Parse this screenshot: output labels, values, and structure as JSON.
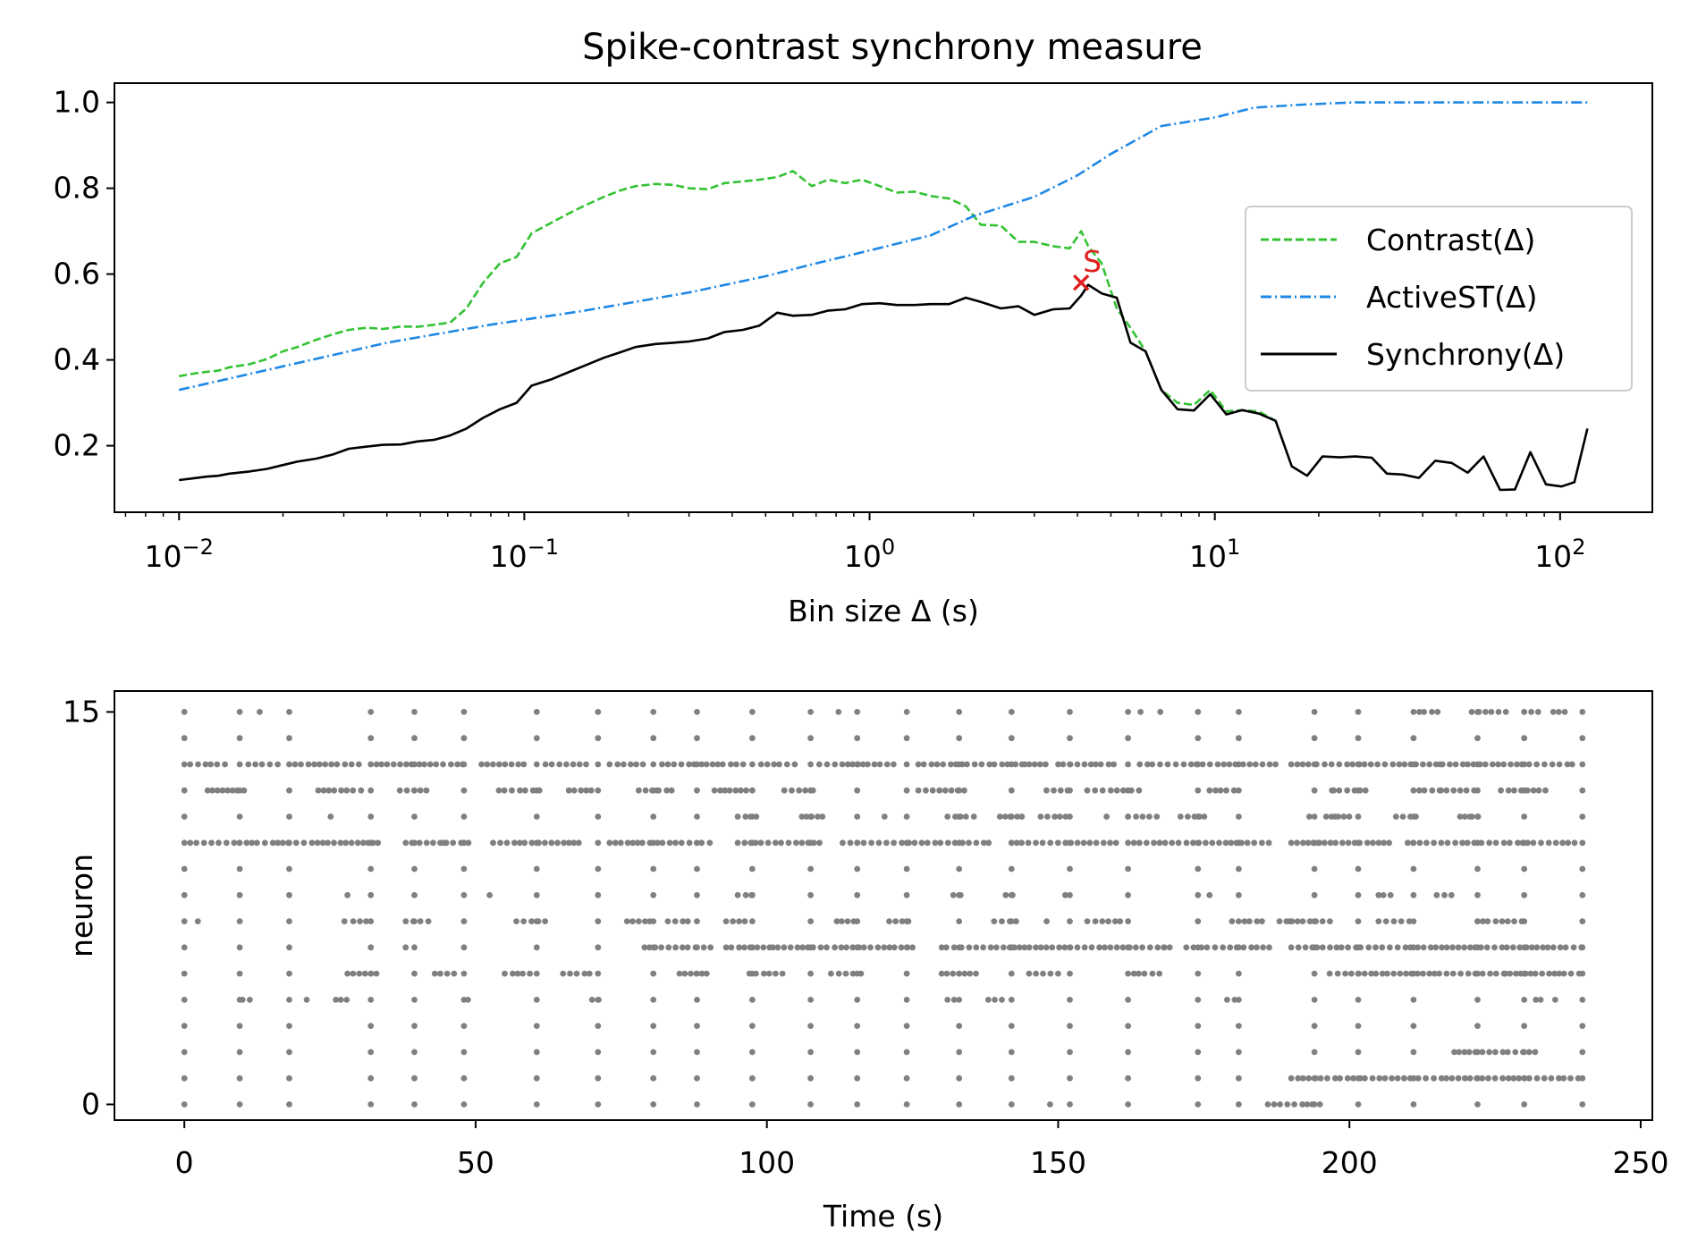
{
  "figure": {
    "title": "Spike-contrast synchrony measure"
  },
  "chart_data": [
    {
      "type": "line",
      "title": "Spike-contrast synchrony measure",
      "xlabel": "Bin size Δ (s)",
      "ylabel": "",
      "xscale": "log",
      "xlim": [
        0.0065,
        185
      ],
      "ylim": [
        0.045,
        1.045
      ],
      "xticks": [
        0.01,
        0.1,
        1,
        10,
        100
      ],
      "xtick_labels": [
        {
          "base": "10",
          "exp": "−2"
        },
        {
          "base": "10",
          "exp": "−1"
        },
        {
          "base": "10",
          "exp": "0"
        },
        {
          "base": "10",
          "exp": "1"
        },
        {
          "base": "10",
          "exp": "2"
        }
      ],
      "yticks": [
        0.2,
        0.4,
        0.6,
        0.8,
        1.0
      ],
      "ytick_labels": [
        "0.2",
        "0.4",
        "0.6",
        "0.8",
        "1.0"
      ],
      "grid": false,
      "legend": "center-right",
      "series": [
        {
          "name": "Contrast(Δ)",
          "color": "#33c233",
          "style": "dashed",
          "x": [
            0.01,
            0.011,
            0.012,
            0.013,
            0.014,
            0.016,
            0.018,
            0.02,
            0.022,
            0.025,
            0.028,
            0.031,
            0.035,
            0.039,
            0.044,
            0.049,
            0.055,
            0.061,
            0.068,
            0.076,
            0.085,
            0.095,
            0.105,
            0.12,
            0.135,
            0.15,
            0.17,
            0.19,
            0.21,
            0.24,
            0.27,
            0.3,
            0.34,
            0.38,
            0.43,
            0.48,
            0.54,
            0.6,
            0.68,
            0.76,
            0.85,
            0.95,
            1.07,
            1.2,
            1.35,
            1.5,
            1.7,
            1.9,
            2.1,
            2.4,
            2.7,
            3.0,
            3.4,
            3.8,
            4.1,
            4.3,
            4.7,
            5.2,
            5.7,
            6.3,
            7.0,
            7.8,
            8.7,
            9.7,
            10.8,
            12.0,
            13.4,
            15.0
          ],
          "values": [
            0.362,
            0.368,
            0.372,
            0.375,
            0.383,
            0.39,
            0.402,
            0.42,
            0.43,
            0.447,
            0.46,
            0.47,
            0.475,
            0.472,
            0.478,
            0.477,
            0.482,
            0.487,
            0.52,
            0.58,
            0.625,
            0.64,
            0.695,
            0.72,
            0.742,
            0.76,
            0.78,
            0.795,
            0.805,
            0.81,
            0.808,
            0.8,
            0.798,
            0.812,
            0.816,
            0.82,
            0.826,
            0.84,
            0.805,
            0.82,
            0.812,
            0.82,
            0.805,
            0.79,
            0.792,
            0.782,
            0.776,
            0.758,
            0.715,
            0.713,
            0.675,
            0.675,
            0.665,
            0.66,
            0.7,
            0.665,
            0.625,
            0.52,
            0.475,
            0.42,
            0.33,
            0.3,
            0.295,
            0.33,
            0.28,
            0.283,
            0.28,
            0.258
          ]
        },
        {
          "name": "ActiveST(Δ)",
          "color": "#1e88e5",
          "style": "dashdot",
          "x": [
            0.01,
            0.02,
            0.04,
            0.08,
            0.15,
            0.3,
            0.5,
            0.7,
            1.0,
            1.5,
            2.0,
            3.0,
            4.0,
            5.0,
            7.0,
            10.0,
            13.0,
            18.0,
            25.0,
            40.0,
            120.0
          ],
          "values": [
            0.33,
            0.385,
            0.44,
            0.482,
            0.515,
            0.557,
            0.595,
            0.625,
            0.655,
            0.69,
            0.735,
            0.78,
            0.83,
            0.88,
            0.945,
            0.965,
            0.988,
            0.995,
            1.0,
            1.0,
            1.0
          ]
        },
        {
          "name": "Synchrony(Δ)",
          "color": "#000000",
          "style": "solid",
          "x": [
            0.01,
            0.011,
            0.012,
            0.013,
            0.014,
            0.016,
            0.018,
            0.02,
            0.022,
            0.025,
            0.028,
            0.031,
            0.035,
            0.039,
            0.044,
            0.049,
            0.055,
            0.061,
            0.068,
            0.076,
            0.085,
            0.095,
            0.105,
            0.12,
            0.135,
            0.15,
            0.17,
            0.19,
            0.21,
            0.24,
            0.27,
            0.3,
            0.34,
            0.38,
            0.43,
            0.48,
            0.54,
            0.6,
            0.68,
            0.76,
            0.85,
            0.95,
            1.07,
            1.2,
            1.35,
            1.5,
            1.7,
            1.9,
            2.1,
            2.4,
            2.7,
            3.0,
            3.4,
            3.8,
            4.1,
            4.3,
            4.7,
            5.2,
            5.7,
            6.3,
            7.0,
            7.8,
            8.7,
            9.7,
            10.8,
            12.0,
            13.4,
            15.0,
            16.7,
            18.5,
            20.5,
            23.0,
            25.5,
            28.5,
            31.5,
            35.0,
            39.0,
            43.5,
            48.5,
            54.0,
            60.0,
            67.0,
            74.0,
            82.0,
            91.0,
            101.0,
            110.0,
            120.0
          ],
          "values": [
            0.12,
            0.124,
            0.128,
            0.13,
            0.135,
            0.14,
            0.146,
            0.155,
            0.163,
            0.17,
            0.18,
            0.193,
            0.198,
            0.202,
            0.203,
            0.21,
            0.214,
            0.224,
            0.24,
            0.265,
            0.285,
            0.3,
            0.34,
            0.355,
            0.372,
            0.387,
            0.405,
            0.418,
            0.43,
            0.437,
            0.44,
            0.443,
            0.45,
            0.465,
            0.47,
            0.48,
            0.51,
            0.503,
            0.505,
            0.515,
            0.518,
            0.53,
            0.532,
            0.528,
            0.528,
            0.53,
            0.53,
            0.545,
            0.535,
            0.52,
            0.525,
            0.505,
            0.518,
            0.52,
            0.55,
            0.575,
            0.555,
            0.545,
            0.44,
            0.42,
            0.33,
            0.285,
            0.282,
            0.32,
            0.273,
            0.283,
            0.275,
            0.258,
            0.152,
            0.13,
            0.175,
            0.173,
            0.175,
            0.172,
            0.135,
            0.133,
            0.125,
            0.165,
            0.16,
            0.137,
            0.175,
            0.097,
            0.098,
            0.185,
            0.11,
            0.105,
            0.115,
            0.24
          ]
        }
      ],
      "annotations": [
        {
          "text": "S",
          "x": 4.1,
          "y": 0.58,
          "marker": "x",
          "color": "#e02020"
        }
      ]
    },
    {
      "type": "scatter",
      "title": "",
      "xlabel": "Time (s)",
      "ylabel": "neuron",
      "xlim": [
        -12,
        252
      ],
      "ylim": [
        -0.6,
        15.8
      ],
      "xticks": [
        0,
        50,
        100,
        150,
        200,
        250
      ],
      "xtick_labels": [
        "0",
        "50",
        "100",
        "150",
        "200",
        "250"
      ],
      "yticks": [
        0,
        15
      ],
      "ytick_labels": [
        "0",
        "15"
      ],
      "grid": false,
      "marker_color": "#808080",
      "shared_burst_times": [
        0,
        9.5,
        18,
        32,
        39.5,
        48,
        60.5,
        71,
        80.5,
        88,
        97.5,
        107.5,
        115.5,
        124,
        133,
        142,
        152,
        162,
        174,
        181,
        194,
        201.5,
        211,
        222,
        230,
        240
      ],
      "neurons": [
        {
          "neuron": 15,
          "extra": [
            [
              212,
              216
            ],
            [
              221,
              227
            ],
            [
              230,
              233
            ],
            [
              235,
              238
            ]
          ],
          "extra_n": 4
        },
        {
          "neuron": 14,
          "extra": [],
          "extra_n": 0
        },
        {
          "neuron": 13,
          "extra": [
            [
              1,
              8
            ],
            [
              11,
              17
            ],
            [
              19,
              30
            ],
            [
              33,
              48
            ],
            [
              51,
              59
            ],
            [
              62,
              70
            ],
            [
              73,
              79
            ],
            [
              82,
              96
            ],
            [
              99,
              106
            ],
            [
              109,
              122
            ],
            [
              126,
              148
            ],
            [
              150,
              160
            ],
            [
              164,
              188
            ],
            [
              190,
              239
            ]
          ],
          "extra_n": 3
        },
        {
          "neuron": 12,
          "extra": [
            [
              4,
              11
            ],
            [
              23,
              31
            ],
            [
              37,
              42
            ],
            [
              54,
              61
            ],
            [
              66,
              70
            ],
            [
              78,
              84
            ],
            [
              91,
              97
            ],
            [
              103,
              109
            ],
            [
              126,
              134
            ],
            [
              148,
              152
            ],
            [
              155,
              163
            ],
            [
              176,
              181
            ],
            [
              197,
              203
            ],
            [
              212,
              222
            ],
            [
              226,
              234
            ]
          ],
          "extra_n": 4
        },
        {
          "neuron": 11,
          "extra": [
            [
              95,
              99
            ],
            [
              106,
              110
            ],
            [
              131,
              136
            ],
            [
              140,
              145
            ],
            [
              147,
              152
            ],
            [
              162,
              167
            ],
            [
              171,
              176
            ],
            [
              196,
              201
            ],
            [
              208,
              212
            ],
            [
              219,
              223
            ]
          ],
          "extra_n": 6
        },
        {
          "neuron": 10,
          "extra": [
            [
              1,
              34
            ],
            [
              38,
              49
            ],
            [
              53,
              68
            ],
            [
              73,
              91
            ],
            [
              95,
              110
            ],
            [
              113,
              139
            ],
            [
              142,
              160
            ],
            [
              163,
              187
            ],
            [
              190,
              207
            ],
            [
              210,
              239
            ]
          ],
          "extra_n": 3
        },
        {
          "neuron": 9,
          "extra": [],
          "extra_n": 0
        },
        {
          "neuron": 8,
          "extra": [
            [
              28,
              29
            ],
            [
              95,
              98
            ],
            [
              132,
              134
            ],
            [
              141,
              143
            ],
            [
              176,
              177
            ],
            [
              205,
              208
            ],
            [
              215,
              218
            ]
          ],
          "extra_n": 2
        },
        {
          "neuron": 7,
          "extra": [
            [
              29,
              32
            ],
            [
              38,
              42
            ],
            [
              57,
              62
            ],
            [
              76,
              80
            ],
            [
              83,
              87
            ],
            [
              93,
              97
            ],
            [
              112,
              116
            ],
            [
              121,
              125
            ],
            [
              139,
              143
            ],
            [
              155,
              161
            ],
            [
              182,
              185
            ],
            [
              188,
              197
            ],
            [
              205,
              211
            ],
            [
              222,
              230
            ]
          ],
          "extra_n": 5
        },
        {
          "neuron": 6,
          "extra": [
            [
              79,
              91
            ],
            [
              93,
              126
            ],
            [
              130,
              170
            ],
            [
              172,
              187
            ],
            [
              190,
              240
            ]
          ],
          "extra_n": 3
        },
        {
          "neuron": 5,
          "extra": [
            [
              28,
              33
            ],
            [
              43,
              47
            ],
            [
              55,
              60
            ],
            [
              65,
              70
            ],
            [
              85,
              90
            ],
            [
              97,
              103
            ],
            [
              111,
              117
            ],
            [
              130,
              137
            ],
            [
              145,
              150
            ],
            [
              163,
              168
            ],
            [
              198,
              240
            ]
          ],
          "extra_n": 2
        },
        {
          "neuron": 4,
          "extra": [
            [
              10,
              12
            ],
            [
              21,
              22
            ],
            [
              26,
              28
            ],
            [
              70,
              72
            ],
            [
              131,
              133
            ],
            [
              138,
              141
            ],
            [
              179,
              181
            ],
            [
              232,
              233
            ]
          ],
          "extra_n": 2
        },
        {
          "neuron": 3,
          "extra": [],
          "extra_n": 0
        },
        {
          "neuron": 2,
          "extra": [
            [
              218,
              232
            ]
          ],
          "extra_n": 0
        },
        {
          "neuron": 1,
          "extra": [
            [
              190,
              240
            ]
          ],
          "extra_n": 0
        },
        {
          "neuron": 0,
          "extra": [
            [
              186,
              196
            ]
          ],
          "extra_n": 1
        }
      ]
    }
  ]
}
